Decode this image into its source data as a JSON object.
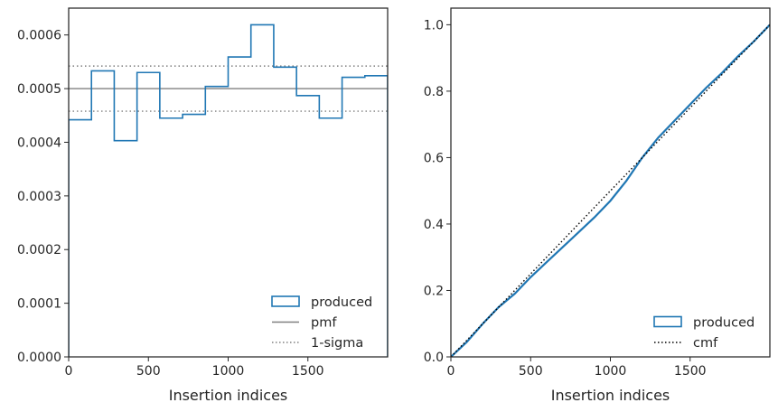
{
  "chart_data": [
    {
      "type": "step",
      "xlabel": "Insertion indices",
      "ylabel": "",
      "xlim": [
        0,
        2000
      ],
      "ylim": [
        0,
        0.00065
      ],
      "xticks": [
        0,
        500,
        1000,
        1500
      ],
      "xtick_labels": [
        "0",
        "500",
        "1000",
        "1500"
      ],
      "yticks": [
        0,
        0.0001,
        0.0002,
        0.0003,
        0.0004,
        0.0005,
        0.0006
      ],
      "ytick_labels": [
        "0.0000",
        "0.0001",
        "0.0002",
        "0.0003",
        "0.0004",
        "0.0005",
        "0.0006"
      ],
      "bin_edges": [
        0,
        142.857,
        285.714,
        428.571,
        571.429,
        714.286,
        857.143,
        1000,
        1142.857,
        1285.714,
        1428.571,
        1571.429,
        1714.286,
        1857.143,
        2000
      ],
      "series": [
        {
          "name": "produced",
          "values": [
            0.000442,
            0.000533,
            0.000403,
            0.00053,
            0.000445,
            0.000452,
            0.000504,
            0.000559,
            0.000619,
            0.00054,
            0.000487,
            0.000445,
            0.000521,
            0.000524
          ],
          "color": "#2077b4"
        }
      ],
      "reference_lines": [
        {
          "name": "pmf",
          "value": 0.0005,
          "color": "#808080",
          "style": "solid"
        },
        {
          "name": "1-sigma",
          "values": [
            0.000458,
            0.000542
          ],
          "color": "#808080",
          "style": "dotted"
        }
      ],
      "legend": {
        "placement": "lower-right",
        "entries": [
          {
            "label": "produced",
            "kind": "patch"
          },
          {
            "label": "pmf",
            "kind": "solid"
          },
          {
            "label": "1-sigma",
            "kind": "dotted"
          }
        ]
      }
    },
    {
      "type": "line",
      "xlabel": "Insertion indices",
      "ylabel": "",
      "xlim": [
        0,
        2000
      ],
      "ylim": [
        0,
        1.05
      ],
      "xticks": [
        0,
        500,
        1000,
        1500
      ],
      "xtick_labels": [
        "0",
        "500",
        "1000",
        "1500"
      ],
      "yticks": [
        0,
        0.2,
        0.4,
        0.6,
        0.8,
        1.0
      ],
      "ytick_labels": [
        "0.0",
        "0.2",
        "0.4",
        "0.6",
        "0.8",
        "1.0"
      ],
      "series": [
        {
          "name": "produced",
          "color": "#2077b4",
          "x": [
            0,
            100,
            200,
            300,
            400,
            500,
            600,
            700,
            800,
            900,
            1000,
            1100,
            1200,
            1300,
            1400,
            1500,
            1600,
            1700,
            1800,
            1900,
            2000
          ],
          "y": [
            0,
            0.045,
            0.1,
            0.15,
            0.19,
            0.24,
            0.285,
            0.33,
            0.375,
            0.42,
            0.47,
            0.53,
            0.6,
            0.66,
            0.71,
            0.76,
            0.81,
            0.855,
            0.905,
            0.95,
            1.0
          ]
        },
        {
          "name": "cmf",
          "color": "#000000",
          "style": "dotted",
          "x": [
            0,
            2000
          ],
          "y": [
            0,
            1.0
          ]
        }
      ],
      "legend": {
        "placement": "lower-right",
        "entries": [
          {
            "label": "produced",
            "kind": "patch"
          },
          {
            "label": "cmf",
            "kind": "dotted"
          }
        ]
      }
    }
  ]
}
